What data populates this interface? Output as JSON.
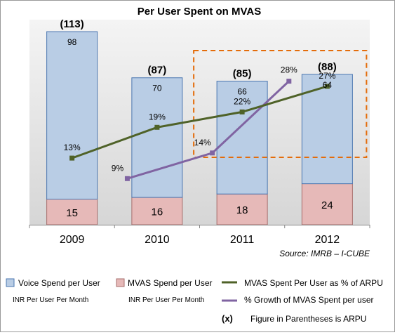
{
  "chart_data": {
    "type": "bar",
    "title": "Per User Spent on MVAS",
    "categories": [
      "2009",
      "2010",
      "2011",
      "2012"
    ],
    "ylim": [
      0,
      120
    ],
    "series": [
      {
        "name": "Voice Spend per User",
        "sublabel": "INR Per User Per Month",
        "type": "bar",
        "stack": "arpu",
        "color": "#b9cde5",
        "values": [
          98,
          70,
          66,
          64
        ]
      },
      {
        "name": "MVAS Spend per User",
        "sublabel": "INR Per User Per Month",
        "type": "bar",
        "stack": "arpu",
        "color": "#e6b9b8",
        "values": [
          15,
          16,
          18,
          24
        ]
      },
      {
        "name": "MVAS Spent Per User as % of ARPU",
        "type": "line",
        "color": "#4f6228",
        "values": [
          13,
          19,
          22,
          27
        ],
        "value_labels": [
          "13%",
          "19%",
          "22%",
          "27%"
        ]
      },
      {
        "name": "% Growth of MVAS Spent per user",
        "type": "line",
        "color": "#8064a2",
        "x": [
          1.65,
          2.65,
          3.55
        ],
        "values": [
          9,
          14,
          28
        ],
        "value_labels": [
          "9%",
          "14%",
          "28%"
        ]
      }
    ],
    "totals": [
      113,
      87,
      85,
      88
    ],
    "total_labels": [
      "(113)",
      "(87)",
      "(85)",
      "(88)"
    ],
    "highlight": {
      "categories": [
        "2011",
        "2012"
      ],
      "style": "dashed-box",
      "color": "#e46c0a"
    },
    "grid": false,
    "source": "Source: IMRB – I-CUBE",
    "note_symbol": "(x)",
    "note_text": "Figure in Parentheses  is ARPU"
  }
}
